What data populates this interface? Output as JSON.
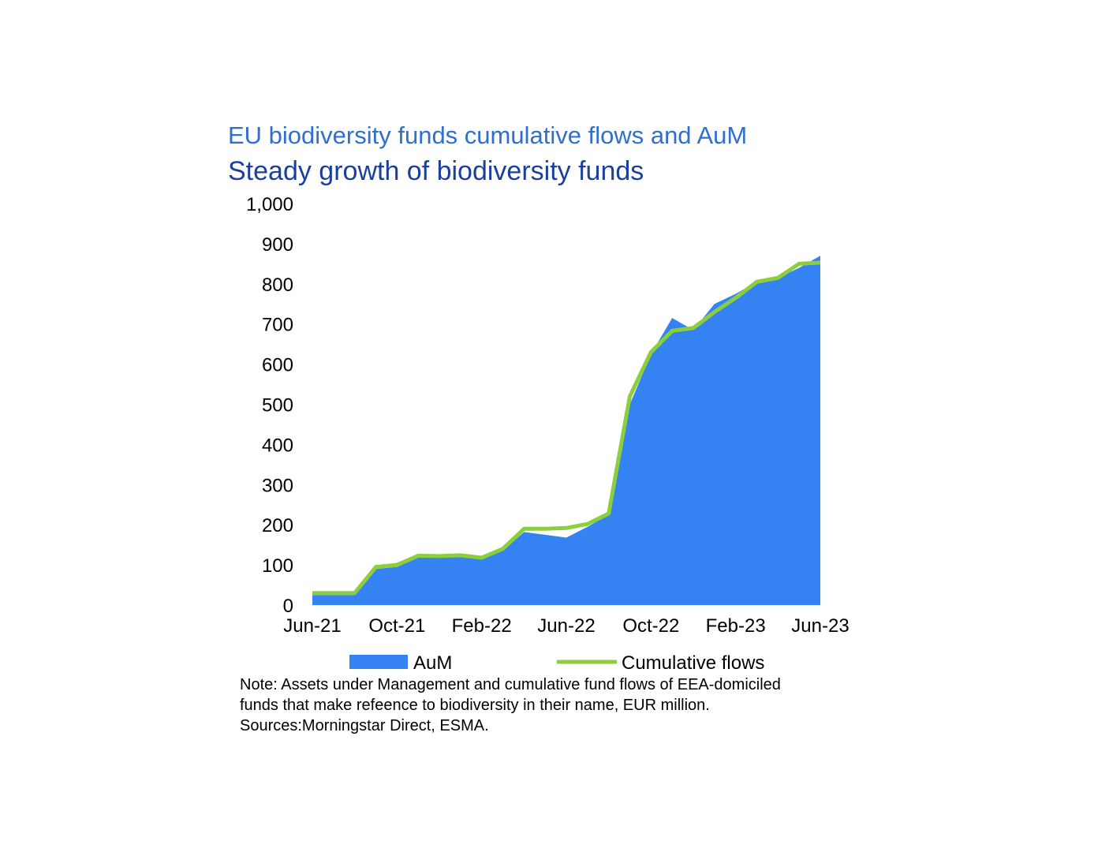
{
  "chart_data": {
    "type": "area",
    "title": "EU biodiversity funds cumulative flows and AuM",
    "subtitle": "Steady growth of biodiversity funds",
    "xlabel": "",
    "ylabel": "",
    "ylim": [
      0,
      1000
    ],
    "yticks": [
      0,
      100,
      200,
      300,
      400,
      500,
      600,
      700,
      800,
      900,
      1000
    ],
    "ytick_labels": [
      "0",
      "100",
      "200",
      "300",
      "400",
      "500",
      "600",
      "700",
      "800",
      "900",
      "1,000"
    ],
    "x": [
      "Jun-21",
      "Jul-21",
      "Aug-21",
      "Sep-21",
      "Oct-21",
      "Nov-21",
      "Dec-21",
      "Jan-22",
      "Feb-22",
      "Mar-22",
      "Apr-22",
      "May-22",
      "Jun-22",
      "Jul-22",
      "Aug-22",
      "Sep-22",
      "Oct-22",
      "Nov-22",
      "Dec-22",
      "Jan-23",
      "Feb-23",
      "Mar-23",
      "Apr-23",
      "May-23",
      "Jun-23"
    ],
    "xtick_labels": [
      "Jun-21",
      "Oct-21",
      "Feb-22",
      "Jun-22",
      "Oct-22",
      "Feb-23",
      "Jun-23"
    ],
    "grid": false,
    "legend_position": "bottom",
    "series": [
      {
        "name": "AuM",
        "type": "area",
        "color": "#3583f3",
        "values": [
          25,
          25,
          25,
          90,
          95,
          118,
          118,
          120,
          115,
          135,
          182,
          175,
          168,
          195,
          225,
          500,
          625,
          715,
          685,
          750,
          775,
          805,
          815,
          840,
          870
        ]
      },
      {
        "name": "Cumulative flows",
        "type": "line",
        "color": "#8dce3c",
        "values": [
          30,
          30,
          30,
          95,
          100,
          123,
          122,
          124,
          118,
          140,
          190,
          190,
          192,
          202,
          228,
          520,
          630,
          683,
          690,
          730,
          765,
          805,
          815,
          850,
          853
        ]
      }
    ],
    "note": [
      "Note: Assets under Management and cumulative fund flows of EEA-domiciled",
      "funds that make refeence to biodiversity in their name, EUR million.",
      "Sources:Morningstar Direct, ESMA."
    ]
  }
}
